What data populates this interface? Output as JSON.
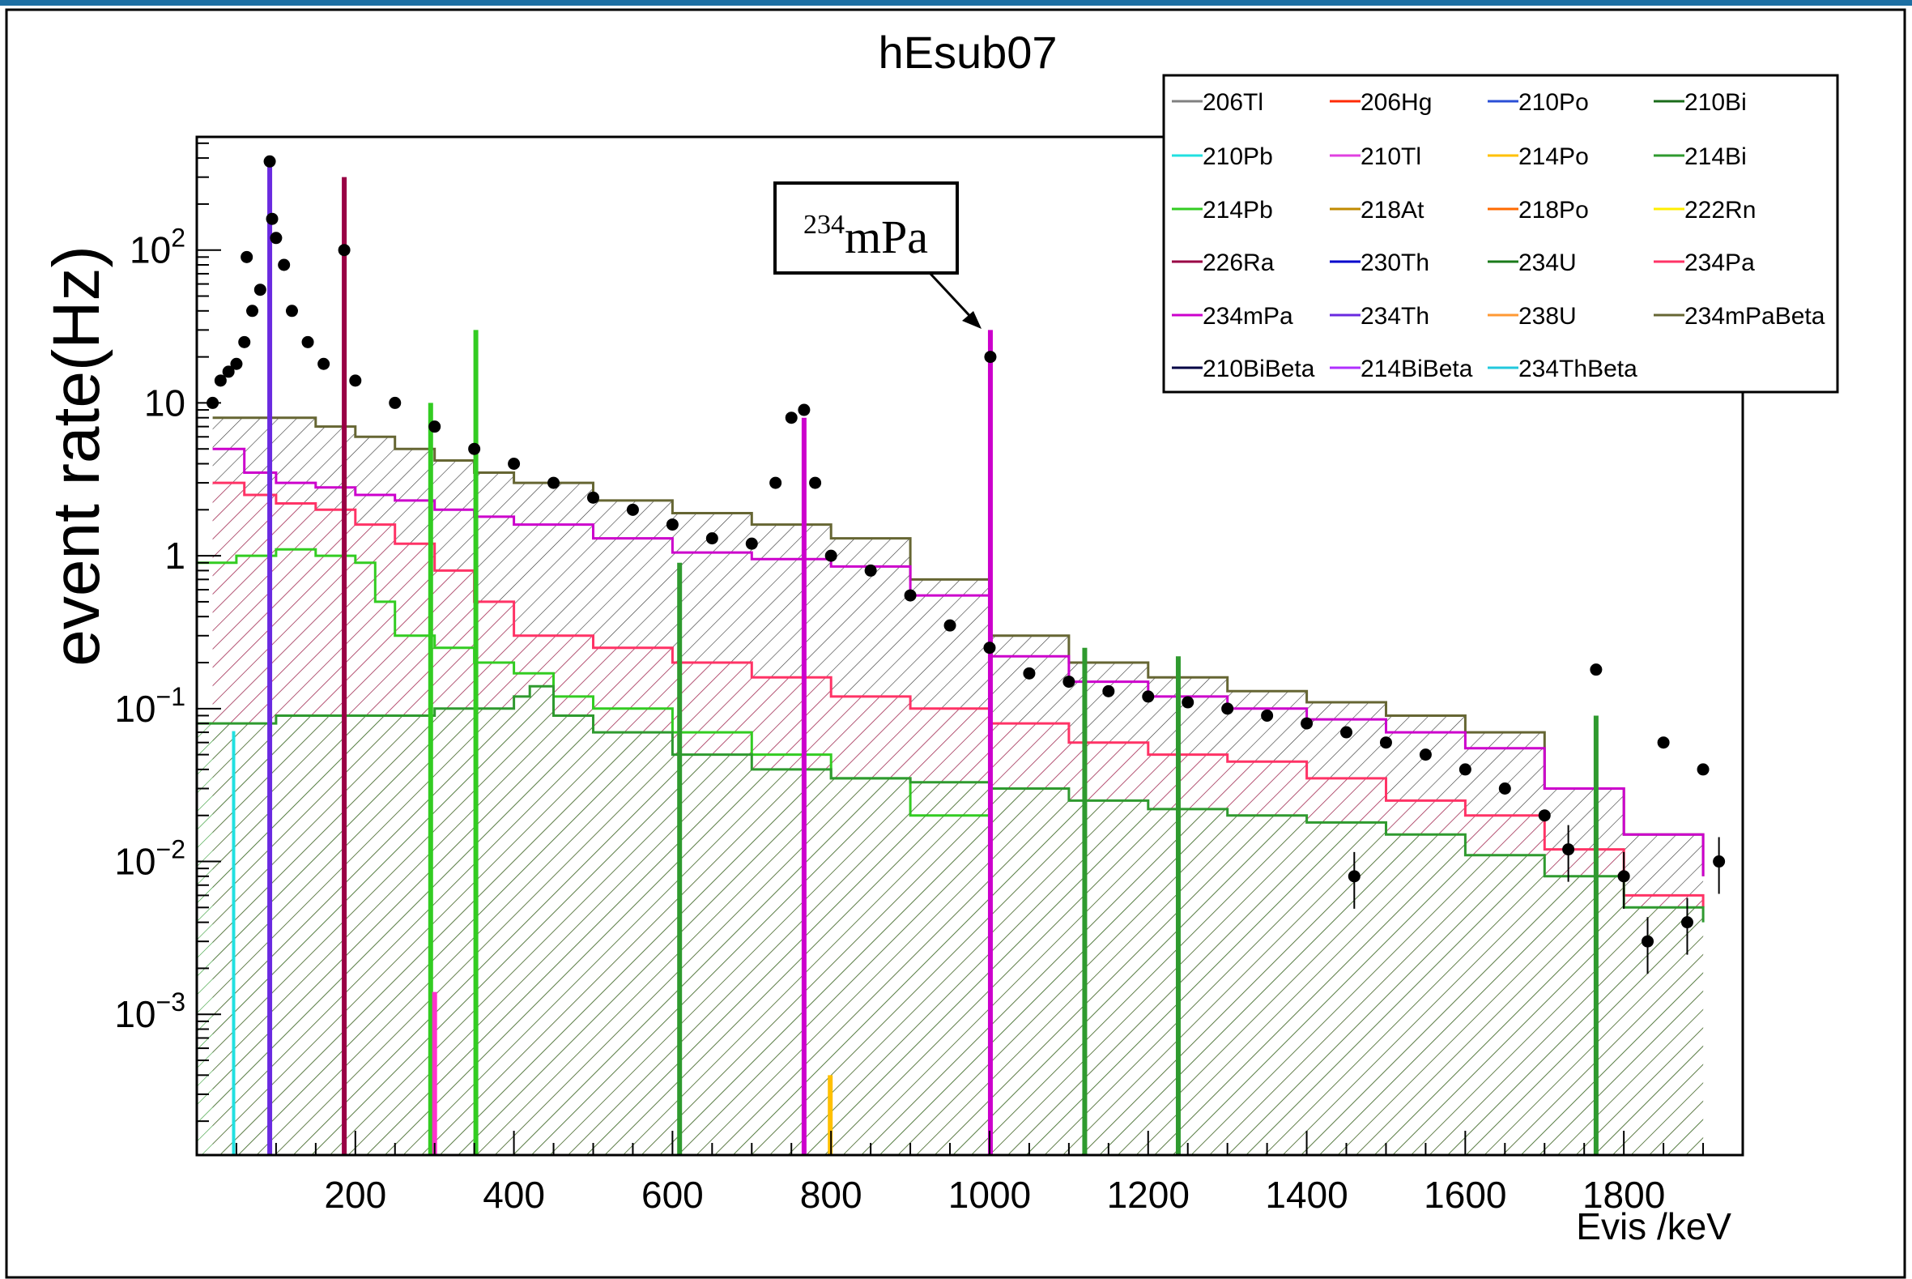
{
  "chart_data": {
    "type": "line",
    "title": "hEsub07",
    "xlabel": "Evis /keV",
    "ylabel": "event rate(Hz)",
    "yscale": "log",
    "xlim": [
      0,
      1950
    ],
    "ylim": [
      0.00012,
      550
    ],
    "x_ticks": [
      {
        "v": 200,
        "label": "200"
      },
      {
        "v": 400,
        "label": "400"
      },
      {
        "v": 600,
        "label": "600"
      },
      {
        "v": 800,
        "label": "800"
      },
      {
        "v": 1000,
        "label": "1000"
      },
      {
        "v": 1200,
        "label": "1200"
      },
      {
        "v": 1400,
        "label": "1400"
      },
      {
        "v": 1600,
        "label": "1600"
      },
      {
        "v": 1800,
        "label": "1800"
      }
    ],
    "y_ticks": [
      {
        "v": 100,
        "base": "10",
        "exp": "2"
      },
      {
        "v": 10,
        "base": "10",
        "exp": ""
      },
      {
        "v": 1,
        "base": "1",
        "exp": ""
      },
      {
        "v": 0.1,
        "base": "10",
        "exp": "−1"
      },
      {
        "v": 0.01,
        "base": "10",
        "exp": "−2"
      },
      {
        "v": 0.001,
        "base": "10",
        "exp": "−3"
      }
    ],
    "annotation": {
      "sup": "234",
      "text": "mPa",
      "target_x": 1000,
      "target_y": 30
    },
    "legend": [
      {
        "name": "206Tl",
        "color": "#808080"
      },
      {
        "name": "206Hg",
        "color": "#ff2a00"
      },
      {
        "name": "210Po",
        "color": "#2a4fd6"
      },
      {
        "name": "210Bi",
        "color": "#1a6b1a"
      },
      {
        "name": "210Pb",
        "color": "#22e0e0"
      },
      {
        "name": "210Tl",
        "color": "#e040e0"
      },
      {
        "name": "214Po",
        "color": "#ffc000"
      },
      {
        "name": "214Bi",
        "color": "#2f9a2f"
      },
      {
        "name": "214Pb",
        "color": "#33cc22"
      },
      {
        "name": "218At",
        "color": "#c08a00"
      },
      {
        "name": "218Po",
        "color": "#ff6a00"
      },
      {
        "name": "222Rn",
        "color": "#ffee00"
      },
      {
        "name": "226Ra",
        "color": "#990044"
      },
      {
        "name": "230Th",
        "color": "#0000cc"
      },
      {
        "name": "234U",
        "color": "#1a7a1a"
      },
      {
        "name": "234Pa",
        "color": "#ff3366"
      },
      {
        "name": "234mPa",
        "color": "#cc00cc"
      },
      {
        "name": "234Th",
        "color": "#6a2ae0"
      },
      {
        "name": "238U",
        "color": "#ff9933"
      },
      {
        "name": "234mPaBeta",
        "color": "#666633"
      },
      {
        "name": "210BiBeta",
        "color": "#000044"
      },
      {
        "name": "214BiBeta",
        "color": "#b030ff"
      },
      {
        "name": "234ThBeta",
        "color": "#22c8dd"
      }
    ],
    "series": [
      {
        "name": "234mPaBeta",
        "color": "#666633",
        "x": [
          20,
          60,
          100,
          150,
          200,
          250,
          300,
          350,
          400,
          500,
          600,
          700,
          800,
          900,
          1000,
          1100,
          1200,
          1300,
          1400,
          1500,
          1600,
          1700,
          1800,
          1900
        ],
        "y": [
          8,
          8,
          8,
          7,
          6,
          5,
          4.2,
          3.5,
          3,
          2.3,
          1.9,
          1.6,
          1.3,
          0.7,
          0.3,
          0.2,
          0.16,
          0.13,
          0.11,
          0.09,
          0.07,
          0.03,
          0.015,
          0.008
        ]
      },
      {
        "name": "234mPa",
        "color": "#cc00cc",
        "x": [
          20,
          60,
          100,
          150,
          200,
          250,
          300,
          350,
          400,
          500,
          600,
          700,
          800,
          900,
          1000,
          1100,
          1200,
          1300,
          1400,
          1500,
          1600,
          1700,
          1800,
          1900
        ],
        "y": [
          5,
          3.5,
          3,
          2.8,
          2.5,
          2.3,
          2.0,
          1.8,
          1.6,
          1.3,
          1.05,
          0.95,
          0.85,
          0.55,
          0.22,
          0.15,
          0.12,
          0.1,
          0.085,
          0.07,
          0.055,
          0.03,
          0.015,
          0.008
        ]
      },
      {
        "name": "234Pa",
        "color": "#ff3366",
        "x": [
          20,
          60,
          100,
          150,
          200,
          250,
          300,
          350,
          400,
          500,
          600,
          700,
          800,
          900,
          1000,
          1100,
          1200,
          1300,
          1400,
          1500,
          1600,
          1700,
          1800,
          1900
        ],
        "y": [
          3,
          2.5,
          2.2,
          2,
          1.6,
          1.2,
          0.8,
          0.5,
          0.3,
          0.25,
          0.2,
          0.16,
          0.12,
          0.1,
          0.08,
          0.06,
          0.05,
          0.045,
          0.035,
          0.025,
          0.02,
          0.012,
          0.006,
          0.005
        ]
      },
      {
        "name": "214Pb",
        "color": "#33cc22",
        "x": [
          0,
          50,
          100,
          150,
          200,
          225,
          250,
          300,
          350,
          400,
          450,
          500,
          600,
          700,
          800,
          900,
          1000
        ],
        "y": [
          0.9,
          1.0,
          1.1,
          1.0,
          0.9,
          0.5,
          0.3,
          0.25,
          0.2,
          0.17,
          0.12,
          0.1,
          0.07,
          0.05,
          0.035,
          0.02,
          0.01
        ]
      },
      {
        "name": "214Bi",
        "color": "#2f9a2f",
        "x": [
          0,
          100,
          200,
          300,
          400,
          420,
          450,
          500,
          600,
          700,
          800,
          900,
          1000,
          1100,
          1200,
          1300,
          1400,
          1500,
          1600,
          1700,
          1800,
          1900
        ],
        "y": [
          0.08,
          0.09,
          0.09,
          0.1,
          0.12,
          0.14,
          0.09,
          0.07,
          0.05,
          0.04,
          0.035,
          0.033,
          0.03,
          0.025,
          0.022,
          0.02,
          0.018,
          0.015,
          0.011,
          0.008,
          0.005,
          0.004
        ]
      },
      {
        "name": "210Pb",
        "color": "#22e0e0",
        "x": [
          40,
          45,
          46,
          47,
          48
        ],
        "y": [
          0.00012,
          0.00012,
          0.07,
          0.00012,
          0.00012
        ]
      }
    ],
    "peaks": [
      {
        "x": 92,
        "y": 350,
        "color": "#6a2ae0"
      },
      {
        "x": 186,
        "y": 300,
        "color": "#990044"
      },
      {
        "x": 352,
        "y": 30,
        "color": "#33cc22"
      },
      {
        "x": 295,
        "y": 10,
        "color": "#33cc22"
      },
      {
        "x": 766,
        "y": 8,
        "color": "#cc00cc"
      },
      {
        "x": 1001,
        "y": 30,
        "color": "#cc00cc"
      },
      {
        "x": 609,
        "y": 0.9,
        "color": "#2f9a2f"
      },
      {
        "x": 1120,
        "y": 0.25,
        "color": "#2f9a2f"
      },
      {
        "x": 1238,
        "y": 0.22,
        "color": "#2f9a2f"
      },
      {
        "x": 1765,
        "y": 0.09,
        "color": "#2f9a2f"
      },
      {
        "x": 300,
        "y": 0.0014,
        "color": "#ff33cc"
      },
      {
        "x": 799,
        "y": 0.0004,
        "color": "#ffc000"
      }
    ],
    "data_points": {
      "name": "data",
      "color": "#000000",
      "x": [
        20,
        30,
        40,
        50,
        60,
        63,
        70,
        80,
        92,
        95,
        100,
        110,
        120,
        140,
        160,
        186,
        200,
        250,
        300,
        350,
        400,
        450,
        500,
        550,
        600,
        650,
        700,
        730,
        750,
        766,
        780,
        800,
        850,
        900,
        950,
        1000,
        1001,
        1050,
        1100,
        1150,
        1200,
        1250,
        1300,
        1350,
        1400,
        1450,
        1460,
        1500,
        1550,
        1600,
        1650,
        1700,
        1730,
        1765,
        1800,
        1830,
        1850,
        1880,
        1900,
        1920
      ],
      "y": [
        10,
        14,
        16,
        18,
        25,
        90,
        40,
        55,
        380,
        160,
        120,
        80,
        40,
        25,
        18,
        100,
        14,
        10,
        7,
        5,
        4,
        3,
        2.4,
        2.0,
        1.6,
        1.3,
        1.2,
        3,
        8,
        9,
        3,
        1.0,
        0.8,
        0.55,
        0.35,
        0.25,
        20,
        0.17,
        0.15,
        0.13,
        0.12,
        0.11,
        0.1,
        0.09,
        0.08,
        0.07,
        0.008,
        0.06,
        0.05,
        0.04,
        0.03,
        0.02,
        0.012,
        0.18,
        0.008,
        0.003,
        0.06,
        0.004,
        0.04,
        0.01
      ]
    }
  }
}
